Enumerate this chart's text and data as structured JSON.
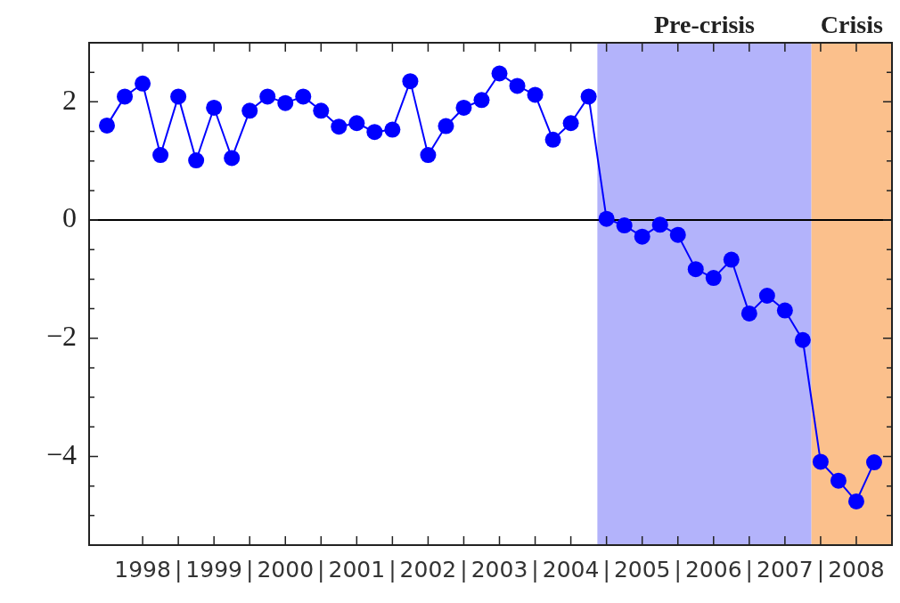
{
  "chart_data": {
    "type": "line",
    "x": [
      "1998-01",
      "1998-04",
      "1998-07",
      "1998-10",
      "1999-01",
      "1999-04",
      "1999-07",
      "1999-10",
      "2000-01",
      "2000-04",
      "2000-07",
      "2000-10",
      "2001-01",
      "2001-04",
      "2001-07",
      "2001-10",
      "2002-01",
      "2002-04",
      "2002-07",
      "2002-10",
      "2003-01",
      "2003-04",
      "2003-07",
      "2003-10",
      "2004-01",
      "2004-04",
      "2004-07",
      "2004-10",
      "2005-01",
      "2005-04",
      "2005-07",
      "2005-10",
      "2006-01",
      "2006-04",
      "2006-07",
      "2006-10",
      "2007-01",
      "2007-04",
      "2007-07",
      "2007-10",
      "2008-01",
      "2008-04",
      "2008-07",
      "2008-10"
    ],
    "series": [
      {
        "color": "#0000ff",
        "values": [
          1.6,
          2.09,
          2.31,
          1.1,
          2.09,
          1.01,
          1.9,
          1.05,
          1.85,
          2.09,
          1.98,
          2.09,
          1.85,
          1.58,
          1.64,
          1.49,
          1.53,
          2.35,
          1.1,
          1.59,
          1.9,
          2.03,
          2.48,
          2.27,
          2.12,
          1.36,
          1.64,
          2.09,
          0.02,
          -0.09,
          -0.28,
          -0.08,
          -0.25,
          -0.83,
          -0.98,
          -0.67,
          -1.58,
          -1.28,
          -1.53,
          -2.03,
          -4.09,
          -4.41,
          -4.76,
          -4.1
        ]
      }
    ],
    "xlim": [
      "1997-10",
      "2009-01"
    ],
    "xticks": [
      {
        "value": "1998-07",
        "label": "1998"
      },
      {
        "value": "1999-01",
        "label": "|"
      },
      {
        "value": "1999-07",
        "label": "1999"
      },
      {
        "value": "2000-01",
        "label": "|"
      },
      {
        "value": "2000-07",
        "label": "2000"
      },
      {
        "value": "2001-01",
        "label": "|"
      },
      {
        "value": "2001-07",
        "label": "2001"
      },
      {
        "value": "2002-01",
        "label": "|"
      },
      {
        "value": "2002-07",
        "label": "2002"
      },
      {
        "value": "2003-01",
        "label": "|"
      },
      {
        "value": "2003-07",
        "label": "2003"
      },
      {
        "value": "2004-01",
        "label": "|"
      },
      {
        "value": "2004-07",
        "label": "2004"
      },
      {
        "value": "2005-01",
        "label": "|"
      },
      {
        "value": "2005-07",
        "label": "2005"
      },
      {
        "value": "2006-01",
        "label": "|"
      },
      {
        "value": "2006-07",
        "label": "2006"
      },
      {
        "value": "2007-01",
        "label": "|"
      },
      {
        "value": "2007-07",
        "label": "2007"
      },
      {
        "value": "2008-01",
        "label": "|"
      },
      {
        "value": "2008-07",
        "label": "2008"
      }
    ],
    "ylim": [
      -5.5,
      3
    ],
    "yticks": [
      {
        "value": -5,
        "label": null
      },
      {
        "value": -4.5,
        "label": null
      },
      {
        "value": -4,
        "label": "−4"
      },
      {
        "value": -3.5,
        "label": null
      },
      {
        "value": -3,
        "label": null
      },
      {
        "value": -2.5,
        "label": null
      },
      {
        "value": -2,
        "label": "−2"
      },
      {
        "value": -1.5,
        "label": null
      },
      {
        "value": -1,
        "label": null
      },
      {
        "value": -0.5,
        "label": null
      },
      {
        "value": 0,
        "label": "0"
      },
      {
        "value": 0.5,
        "label": null
      },
      {
        "value": 1,
        "label": null
      },
      {
        "value": 1.5,
        "label": null
      },
      {
        "value": 2,
        "label": "2"
      },
      {
        "value": 2.5,
        "label": null
      }
    ],
    "grid": false,
    "legend": false,
    "marker": "circle",
    "line_style": "solid",
    "ref_lines": [
      {
        "axis": "y",
        "value": 0,
        "color": "#000000"
      }
    ],
    "bands": [
      {
        "axis": "x",
        "from": "2004-11-15",
        "to": "2007-11-15",
        "label": "Pre-crisis",
        "color": "#b3b3fb"
      },
      {
        "axis": "x",
        "from": "2007-11-15",
        "to": "2009-01",
        "label": "Crisis",
        "color": "#fbc08c"
      }
    ]
  }
}
